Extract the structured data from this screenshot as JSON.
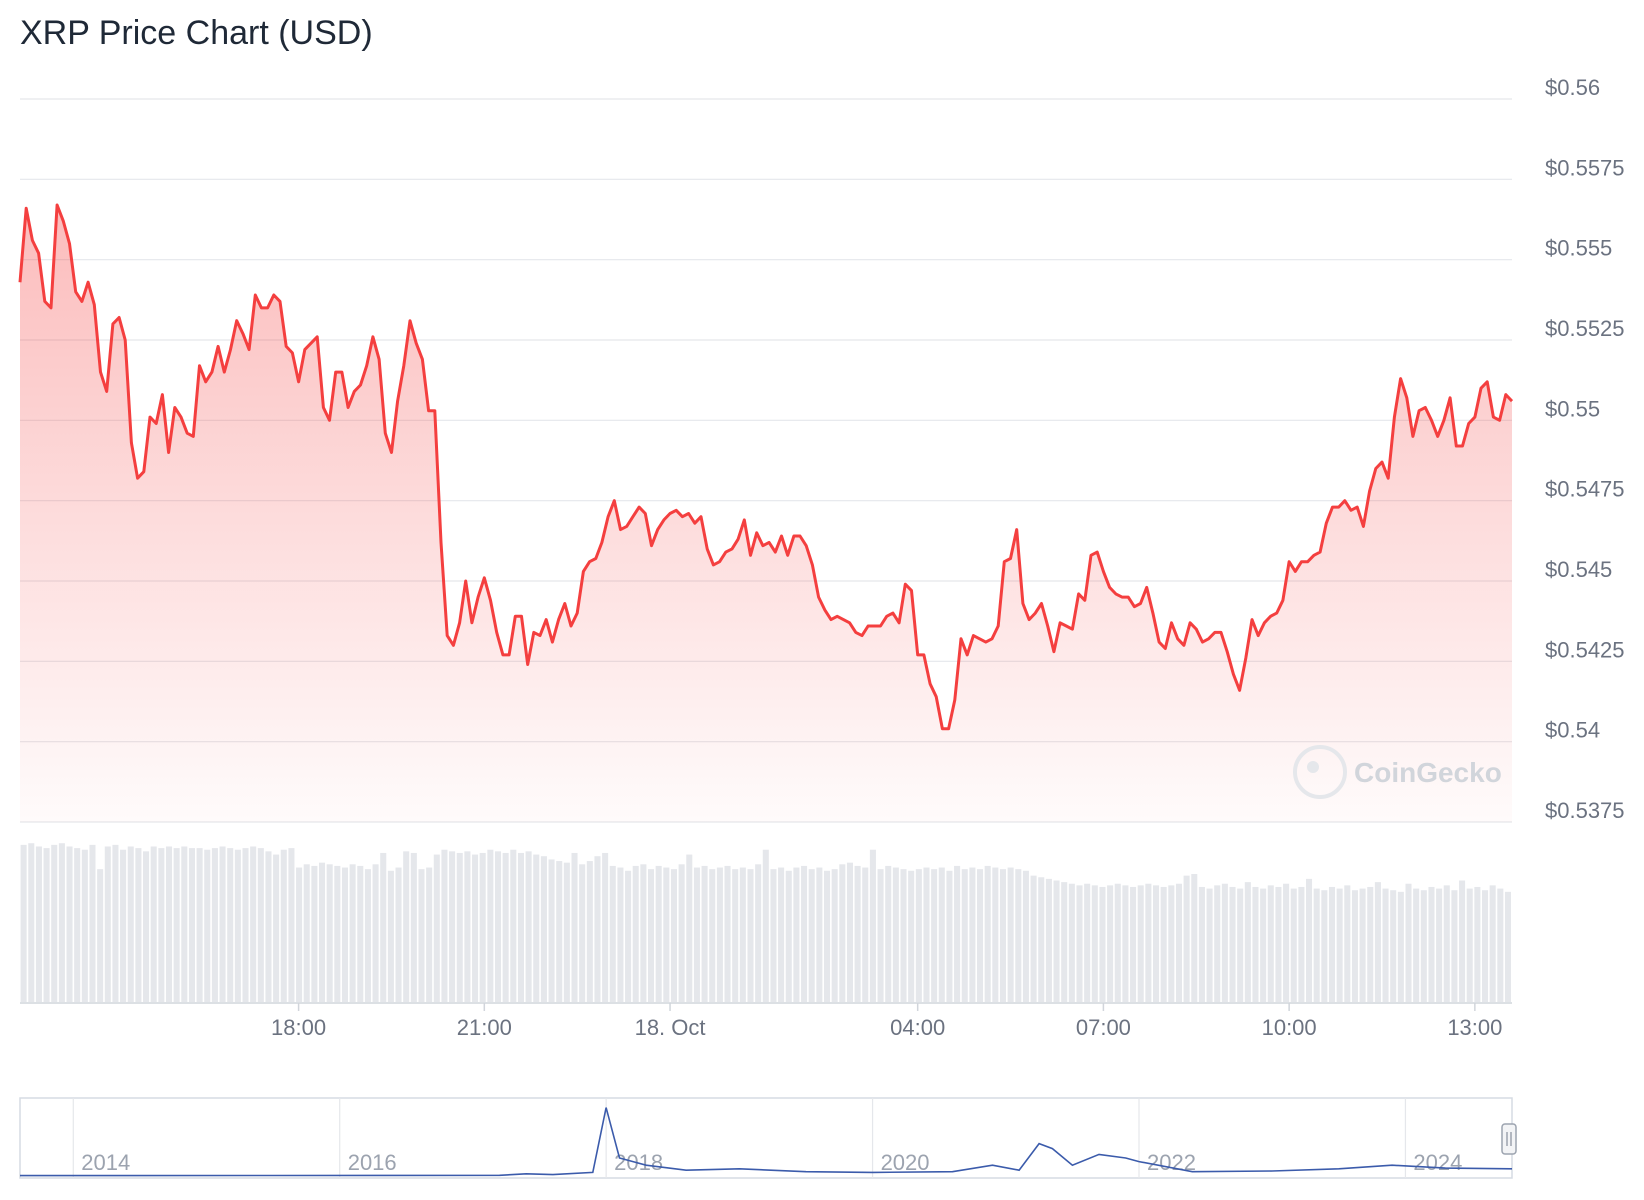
{
  "chart_data": {
    "type": "line",
    "title": "XRP Price Chart (USD)",
    "currency": "USD",
    "watermark": "CoinGecko",
    "y_ticks": [
      "$0.56",
      "$0.5575",
      "$0.555",
      "$0.5525",
      "$0.55",
      "$0.5475",
      "$0.545",
      "$0.5425",
      "$0.54",
      "$0.5375"
    ],
    "ylim": [
      0.5375,
      0.56
    ],
    "x_ticks": [
      "18:00",
      "21:00",
      "18. Oct",
      "04:00",
      "07:00",
      "10:00",
      "13:00"
    ],
    "x_tick_hours": [
      18,
      21,
      24,
      28,
      31,
      34,
      37
    ],
    "xlim_hours": [
      13.5,
      37.6
    ],
    "price_series": {
      "name": "Price",
      "color": "#f43f3f",
      "points": [
        [
          13.5,
          0.5543
        ],
        [
          13.6,
          0.5566
        ],
        [
          13.7,
          0.5556
        ],
        [
          13.8,
          0.5552
        ],
        [
          13.9,
          0.5537
        ],
        [
          14.0,
          0.5535
        ],
        [
          14.1,
          0.5567
        ],
        [
          14.2,
          0.5562
        ],
        [
          14.3,
          0.5555
        ],
        [
          14.4,
          0.554
        ],
        [
          14.5,
          0.5537
        ],
        [
          14.6,
          0.5543
        ],
        [
          14.7,
          0.5536
        ],
        [
          14.8,
          0.5515
        ],
        [
          14.9,
          0.5509
        ],
        [
          15.0,
          0.553
        ],
        [
          15.1,
          0.5532
        ],
        [
          15.2,
          0.5525
        ],
        [
          15.3,
          0.5493
        ],
        [
          15.4,
          0.5482
        ],
        [
          15.5,
          0.5484
        ],
        [
          15.6,
          0.5501
        ],
        [
          15.7,
          0.5499
        ],
        [
          15.8,
          0.5508
        ],
        [
          15.9,
          0.549
        ],
        [
          16.0,
          0.5504
        ],
        [
          16.1,
          0.5501
        ],
        [
          16.2,
          0.5496
        ],
        [
          16.3,
          0.5495
        ],
        [
          16.4,
          0.5517
        ],
        [
          16.5,
          0.5512
        ],
        [
          16.6,
          0.5515
        ],
        [
          16.7,
          0.5523
        ],
        [
          16.8,
          0.5515
        ],
        [
          16.9,
          0.5522
        ],
        [
          17.0,
          0.5531
        ],
        [
          17.1,
          0.5527
        ],
        [
          17.2,
          0.5522
        ],
        [
          17.3,
          0.5539
        ],
        [
          17.4,
          0.5535
        ],
        [
          17.5,
          0.5535
        ],
        [
          17.6,
          0.5539
        ],
        [
          17.7,
          0.5537
        ],
        [
          17.8,
          0.5523
        ],
        [
          17.9,
          0.5521
        ],
        [
          18.0,
          0.5512
        ],
        [
          18.1,
          0.5522
        ],
        [
          18.2,
          0.5524
        ],
        [
          18.3,
          0.5526
        ],
        [
          18.4,
          0.5504
        ],
        [
          18.5,
          0.55
        ],
        [
          18.6,
          0.5515
        ],
        [
          18.7,
          0.5515
        ],
        [
          18.8,
          0.5504
        ],
        [
          18.9,
          0.5509
        ],
        [
          19.0,
          0.5511
        ],
        [
          19.1,
          0.5517
        ],
        [
          19.2,
          0.5526
        ],
        [
          19.3,
          0.5519
        ],
        [
          19.4,
          0.5496
        ],
        [
          19.5,
          0.549
        ],
        [
          19.6,
          0.5506
        ],
        [
          19.7,
          0.5517
        ],
        [
          19.8,
          0.5531
        ],
        [
          19.9,
          0.5524
        ],
        [
          20.0,
          0.5519
        ],
        [
          20.1,
          0.5503
        ],
        [
          20.2,
          0.5503
        ],
        [
          20.3,
          0.5462
        ],
        [
          20.4,
          0.5433
        ],
        [
          20.5,
          0.543
        ],
        [
          20.6,
          0.5437
        ],
        [
          20.7,
          0.545
        ],
        [
          20.8,
          0.5437
        ],
        [
          20.9,
          0.5445
        ],
        [
          21.0,
          0.5451
        ],
        [
          21.1,
          0.5444
        ],
        [
          21.2,
          0.5434
        ],
        [
          21.3,
          0.5427
        ],
        [
          21.4,
          0.5427
        ],
        [
          21.5,
          0.5439
        ],
        [
          21.6,
          0.5439
        ],
        [
          21.7,
          0.5424
        ],
        [
          21.8,
          0.5434
        ],
        [
          21.9,
          0.5433
        ],
        [
          22.0,
          0.5438
        ],
        [
          22.1,
          0.5431
        ],
        [
          22.2,
          0.5438
        ],
        [
          22.3,
          0.5443
        ],
        [
          22.4,
          0.5436
        ],
        [
          22.5,
          0.544
        ],
        [
          22.6,
          0.5453
        ],
        [
          22.7,
          0.5456
        ],
        [
          22.8,
          0.5457
        ],
        [
          22.9,
          0.5462
        ],
        [
          23.0,
          0.547
        ],
        [
          23.1,
          0.5475
        ],
        [
          23.2,
          0.5466
        ],
        [
          23.3,
          0.5467
        ],
        [
          23.4,
          0.547
        ],
        [
          23.5,
          0.5473
        ],
        [
          23.6,
          0.5471
        ],
        [
          23.7,
          0.5461
        ],
        [
          23.8,
          0.5466
        ],
        [
          23.9,
          0.5469
        ],
        [
          24.0,
          0.5471
        ],
        [
          24.1,
          0.5472
        ],
        [
          24.2,
          0.547
        ],
        [
          24.3,
          0.5471
        ],
        [
          24.4,
          0.5468
        ],
        [
          24.5,
          0.547
        ],
        [
          24.6,
          0.546
        ],
        [
          24.7,
          0.5455
        ],
        [
          24.8,
          0.5456
        ],
        [
          24.9,
          0.5459
        ],
        [
          25.0,
          0.546
        ],
        [
          25.1,
          0.5463
        ],
        [
          25.2,
          0.5469
        ],
        [
          25.3,
          0.5458
        ],
        [
          25.4,
          0.5465
        ],
        [
          25.5,
          0.5461
        ],
        [
          25.6,
          0.5462
        ],
        [
          25.7,
          0.5459
        ],
        [
          25.8,
          0.5464
        ],
        [
          25.9,
          0.5458
        ],
        [
          26.0,
          0.5464
        ],
        [
          26.1,
          0.5464
        ],
        [
          26.2,
          0.5461
        ],
        [
          26.3,
          0.5455
        ],
        [
          26.4,
          0.5445
        ],
        [
          26.5,
          0.5441
        ],
        [
          26.6,
          0.5438
        ],
        [
          26.7,
          0.5439
        ],
        [
          26.8,
          0.5438
        ],
        [
          26.9,
          0.5437
        ],
        [
          27.0,
          0.5434
        ],
        [
          27.1,
          0.5433
        ],
        [
          27.2,
          0.5436
        ],
        [
          27.3,
          0.5436
        ],
        [
          27.4,
          0.5436
        ],
        [
          27.5,
          0.5439
        ],
        [
          27.6,
          0.544
        ],
        [
          27.7,
          0.5437
        ],
        [
          27.8,
          0.5449
        ],
        [
          27.9,
          0.5447
        ],
        [
          28.0,
          0.5427
        ],
        [
          28.1,
          0.5427
        ],
        [
          28.2,
          0.5418
        ],
        [
          28.3,
          0.5414
        ],
        [
          28.4,
          0.5404
        ],
        [
          28.5,
          0.5404
        ],
        [
          28.6,
          0.5413
        ],
        [
          28.7,
          0.5432
        ],
        [
          28.8,
          0.5427
        ],
        [
          28.9,
          0.5433
        ],
        [
          29.0,
          0.5432
        ],
        [
          29.1,
          0.5431
        ],
        [
          29.2,
          0.5432
        ],
        [
          29.3,
          0.5436
        ],
        [
          29.4,
          0.5456
        ],
        [
          29.5,
          0.5457
        ],
        [
          29.6,
          0.5466
        ],
        [
          29.7,
          0.5443
        ],
        [
          29.8,
          0.5438
        ],
        [
          29.9,
          0.544
        ],
        [
          30.0,
          0.5443
        ],
        [
          30.1,
          0.5436
        ],
        [
          30.2,
          0.5428
        ],
        [
          30.3,
          0.5437
        ],
        [
          30.4,
          0.5436
        ],
        [
          30.5,
          0.5435
        ],
        [
          30.6,
          0.5446
        ],
        [
          30.7,
          0.5444
        ],
        [
          30.8,
          0.5458
        ],
        [
          30.9,
          0.5459
        ],
        [
          31.0,
          0.5453
        ],
        [
          31.1,
          0.5448
        ],
        [
          31.2,
          0.5446
        ],
        [
          31.3,
          0.5445
        ],
        [
          31.4,
          0.5445
        ],
        [
          31.5,
          0.5442
        ],
        [
          31.6,
          0.5443
        ],
        [
          31.7,
          0.5448
        ],
        [
          31.8,
          0.544
        ],
        [
          31.9,
          0.5431
        ],
        [
          32.0,
          0.5429
        ],
        [
          32.1,
          0.5437
        ],
        [
          32.2,
          0.5432
        ],
        [
          32.3,
          0.543
        ],
        [
          32.4,
          0.5437
        ],
        [
          32.5,
          0.5435
        ],
        [
          32.6,
          0.5431
        ],
        [
          32.7,
          0.5432
        ],
        [
          32.8,
          0.5434
        ],
        [
          32.9,
          0.5434
        ],
        [
          33.0,
          0.5428
        ],
        [
          33.1,
          0.5421
        ],
        [
          33.2,
          0.5416
        ],
        [
          33.3,
          0.5426
        ],
        [
          33.4,
          0.5438
        ],
        [
          33.5,
          0.5433
        ],
        [
          33.6,
          0.5437
        ],
        [
          33.7,
          0.5439
        ],
        [
          33.8,
          0.544
        ],
        [
          33.9,
          0.5444
        ],
        [
          34.0,
          0.5456
        ],
        [
          34.1,
          0.5453
        ],
        [
          34.2,
          0.5456
        ],
        [
          34.3,
          0.5456
        ],
        [
          34.4,
          0.5458
        ],
        [
          34.5,
          0.5459
        ],
        [
          34.6,
          0.5468
        ],
        [
          34.7,
          0.5473
        ],
        [
          34.8,
          0.5473
        ],
        [
          34.9,
          0.5475
        ],
        [
          35.0,
          0.5472
        ],
        [
          35.1,
          0.5473
        ],
        [
          35.2,
          0.5467
        ],
        [
          35.3,
          0.5478
        ],
        [
          35.4,
          0.5485
        ],
        [
          35.5,
          0.5487
        ],
        [
          35.6,
          0.5482
        ],
        [
          35.7,
          0.5501
        ],
        [
          35.8,
          0.5513
        ],
        [
          35.9,
          0.5507
        ],
        [
          36.0,
          0.5495
        ],
        [
          36.1,
          0.5503
        ],
        [
          36.2,
          0.5504
        ],
        [
          36.3,
          0.55
        ],
        [
          36.4,
          0.5495
        ],
        [
          36.5,
          0.55
        ],
        [
          36.6,
          0.5507
        ],
        [
          36.7,
          0.5492
        ],
        [
          36.8,
          0.5492
        ],
        [
          36.9,
          0.5499
        ],
        [
          37.0,
          0.5501
        ],
        [
          37.1,
          0.551
        ],
        [
          37.2,
          0.5512
        ],
        [
          37.3,
          0.5501
        ],
        [
          37.4,
          0.55
        ],
        [
          37.5,
          0.5508
        ],
        [
          37.6,
          0.5506
        ]
      ]
    },
    "volume_series": {
      "name": "Volume",
      "color": "#e5e7eb",
      "relative_values": [
        0.97,
        0.98,
        0.96,
        0.95,
        0.97,
        0.98,
        0.96,
        0.95,
        0.94,
        0.97,
        0.82,
        0.96,
        0.97,
        0.94,
        0.96,
        0.95,
        0.93,
        0.96,
        0.95,
        0.96,
        0.95,
        0.96,
        0.95,
        0.95,
        0.94,
        0.95,
        0.96,
        0.95,
        0.94,
        0.95,
        0.96,
        0.95,
        0.93,
        0.91,
        0.94,
        0.95,
        0.83,
        0.85,
        0.84,
        0.86,
        0.85,
        0.84,
        0.83,
        0.85,
        0.84,
        0.82,
        0.85,
        0.92,
        0.81,
        0.83,
        0.93,
        0.92,
        0.82,
        0.83,
        0.91,
        0.94,
        0.93,
        0.92,
        0.93,
        0.91,
        0.92,
        0.94,
        0.93,
        0.92,
        0.94,
        0.92,
        0.93,
        0.91,
        0.9,
        0.88,
        0.87,
        0.86,
        0.92,
        0.85,
        0.87,
        0.9,
        0.92,
        0.84,
        0.83,
        0.81,
        0.84,
        0.85,
        0.82,
        0.84,
        0.83,
        0.82,
        0.85,
        0.91,
        0.83,
        0.84,
        0.82,
        0.83,
        0.84,
        0.82,
        0.83,
        0.82,
        0.85,
        0.94,
        0.82,
        0.83,
        0.81,
        0.83,
        0.84,
        0.82,
        0.83,
        0.81,
        0.82,
        0.85,
        0.86,
        0.84,
        0.83,
        0.94,
        0.82,
        0.84,
        0.83,
        0.82,
        0.81,
        0.82,
        0.83,
        0.82,
        0.83,
        0.81,
        0.84,
        0.82,
        0.83,
        0.82,
        0.84,
        0.83,
        0.82,
        0.83,
        0.82,
        0.81,
        0.78,
        0.77,
        0.76,
        0.75,
        0.74,
        0.73,
        0.72,
        0.73,
        0.72,
        0.71,
        0.72,
        0.73,
        0.72,
        0.71,
        0.72,
        0.73,
        0.72,
        0.71,
        0.72,
        0.73,
        0.78,
        0.79,
        0.71,
        0.7,
        0.72,
        0.73,
        0.71,
        0.7,
        0.74,
        0.71,
        0.7,
        0.72,
        0.71,
        0.73,
        0.7,
        0.71,
        0.76,
        0.7,
        0.69,
        0.71,
        0.7,
        0.72,
        0.69,
        0.7,
        0.71,
        0.74,
        0.7,
        0.69,
        0.68,
        0.73,
        0.7,
        0.69,
        0.71,
        0.7,
        0.72,
        0.69,
        0.75,
        0.7,
        0.71,
        0.69,
        0.72,
        0.7,
        0.68
      ]
    },
    "navigator": {
      "labels": [
        "2014",
        "2016",
        "2018",
        "2020",
        "2022",
        "2024"
      ],
      "label_years": [
        2014,
        2016,
        2018,
        2020,
        2022,
        2024
      ],
      "year_range": [
        2013.6,
        2024.8
      ],
      "color": "#3b5bab",
      "points": [
        [
          2013.6,
          0.005
        ],
        [
          2015.5,
          0.007
        ],
        [
          2017.2,
          0.01
        ],
        [
          2017.4,
          0.03
        ],
        [
          2017.6,
          0.02
        ],
        [
          2017.9,
          0.05
        ],
        [
          2018.0,
          0.95
        ],
        [
          2018.1,
          0.25
        ],
        [
          2018.3,
          0.15
        ],
        [
          2018.6,
          0.08
        ],
        [
          2019.0,
          0.1
        ],
        [
          2019.5,
          0.06
        ],
        [
          2020.0,
          0.05
        ],
        [
          2020.6,
          0.06
        ],
        [
          2020.9,
          0.15
        ],
        [
          2021.1,
          0.08
        ],
        [
          2021.25,
          0.45
        ],
        [
          2021.35,
          0.38
        ],
        [
          2021.5,
          0.15
        ],
        [
          2021.7,
          0.3
        ],
        [
          2021.9,
          0.25
        ],
        [
          2022.0,
          0.2
        ],
        [
          2022.4,
          0.06
        ],
        [
          2023.0,
          0.07
        ],
        [
          2023.5,
          0.1
        ],
        [
          2023.9,
          0.15
        ],
        [
          2024.3,
          0.11
        ],
        [
          2024.8,
          0.1
        ]
      ]
    }
  }
}
